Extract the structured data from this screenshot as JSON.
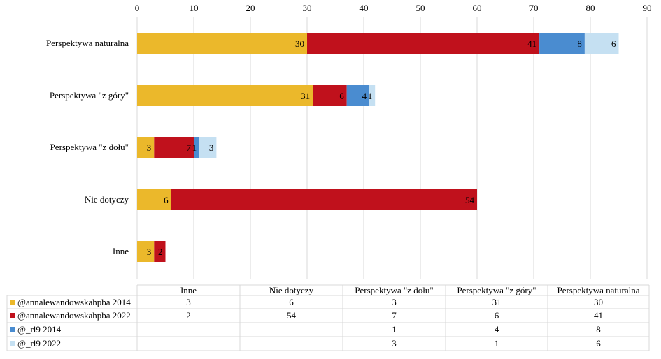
{
  "chart_data": {
    "type": "bar",
    "orientation": "horizontal",
    "stacked": true,
    "title": "",
    "xlabel": "",
    "ylabel": "",
    "xlim": [
      0,
      90
    ],
    "xticks": [
      0,
      10,
      20,
      30,
      40,
      50,
      60,
      70,
      80,
      90
    ],
    "grid": true,
    "axis_position": "top",
    "legend": "data-table-bottom",
    "categories": [
      "Perspektywa naturalna",
      "Perspektywa \"z góry\"",
      "Perspektywa \"z dołu\"",
      "Nie dotyczy",
      "Inne"
    ],
    "table_categories": [
      "Inne",
      "Nie dotyczy",
      "Perspektywa \"z dołu\"",
      "Perspektywa \"z góry\"",
      "Perspektywa naturalna"
    ],
    "series": [
      {
        "name": "@annalewandowskahpba 2014",
        "color": "#EBB82B",
        "values": [
          30,
          31,
          3,
          6,
          3
        ]
      },
      {
        "name": "@annalewandowskahpba 2022",
        "color": "#C0111C",
        "values": [
          41,
          6,
          7,
          54,
          2
        ]
      },
      {
        "name": "@_rl9 2014",
        "color": "#4A8CD0",
        "values": [
          8,
          4,
          1,
          null,
          null
        ]
      },
      {
        "name": "@_rl9 2022",
        "color": "#C5E0F2",
        "values": [
          6,
          1,
          3,
          null,
          null
        ]
      }
    ]
  }
}
